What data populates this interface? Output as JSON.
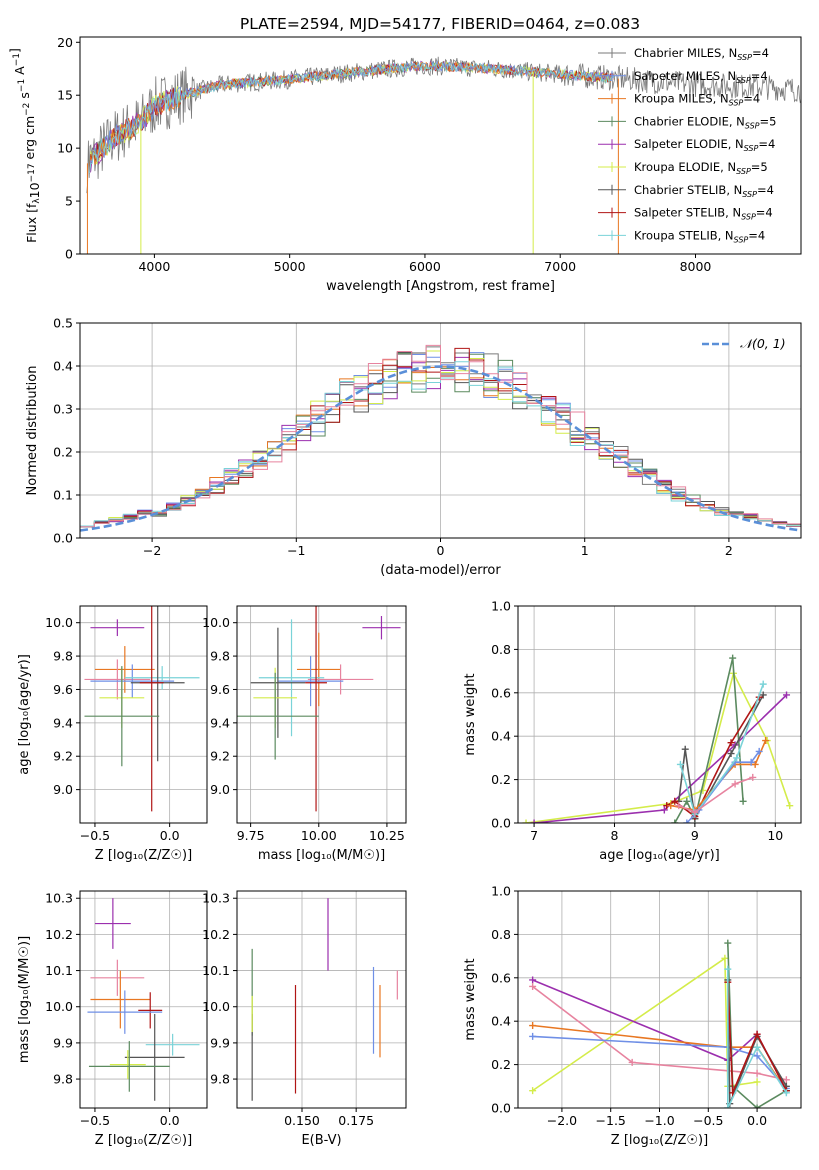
{
  "figure": {
    "title": "PLATE=2594, MJD=54177, FIBERID=0464, z=0.083"
  },
  "colors": {
    "series": [
      "#7a7a7a",
      "#6f8fe6",
      "#e87722",
      "#5b8a5f",
      "#9b2fae",
      "#d4ec4a",
      "#555555",
      "#b01515",
      "#7ad3d8",
      "#e7839f"
    ]
  },
  "chart_data": [
    {
      "id": "spectrum",
      "type": "line",
      "xlabel": "wavelength [Angstrom, rest frame]",
      "ylabel_parts": {
        "pre": "Flux [f",
        "sub1": "λ",
        "mid": "10",
        "sup1": "−17",
        "post": " erg cm",
        "sup2": "−2",
        "post2": " s",
        "sup3": "−1",
        "post3": " A",
        "sup4": "−1",
        "end": "]"
      },
      "xlim": [
        3450,
        8780
      ],
      "ylim": [
        0,
        20.5
      ],
      "xticks": [
        4000,
        5000,
        6000,
        7000,
        8000
      ],
      "yticks": [
        0,
        5,
        10,
        15,
        20
      ],
      "legend": [
        {
          "label": "Chabrier MILES, N",
          "sub": "SSP",
          "tail": "=4",
          "color": "#7a7a7a"
        },
        {
          "label": "Salpeter MILES, N",
          "sub": "SSP",
          "tail": "=4",
          "color": "#6f8fe6"
        },
        {
          "label": "Kroupa MILES, N",
          "sub": "SSP",
          "tail": "=4",
          "color": "#e87722"
        },
        {
          "label": "Chabrier ELODIE, N",
          "sub": "SSP",
          "tail": "=5",
          "color": "#5b8a5f"
        },
        {
          "label": "Salpeter ELODIE, N",
          "sub": "SSP",
          "tail": "=4",
          "color": "#9b2fae"
        },
        {
          "label": "Kroupa ELODIE, N",
          "sub": "SSP",
          "tail": "=5",
          "color": "#d4ec4a"
        },
        {
          "label": "Chabrier STELIB, N",
          "sub": "SSP",
          "tail": "=4",
          "color": "#555555"
        },
        {
          "label": "Salpeter STELIB, N",
          "sub": "SSP",
          "tail": "=4",
          "color": "#b01515"
        },
        {
          "label": "Kroupa STELIB, N",
          "sub": "SSP",
          "tail": "=4",
          "color": "#7ad3d8"
        }
      ],
      "continuum": [
        [
          3500,
          8.5
        ],
        [
          3700,
          11
        ],
        [
          3900,
          12.5
        ],
        [
          4000,
          14
        ],
        [
          4200,
          15
        ],
        [
          4500,
          16
        ],
        [
          5000,
          16.5
        ],
        [
          5500,
          17.2
        ],
        [
          6000,
          17.8
        ],
        [
          6500,
          17.5
        ],
        [
          7000,
          17
        ],
        [
          7500,
          16.5
        ],
        [
          8000,
          16
        ],
        [
          8500,
          15.8
        ],
        [
          8780,
          15.5
        ]
      ]
    },
    {
      "id": "residuals",
      "type": "histogram",
      "xlabel": "(data-model)/error",
      "ylabel": "Normed distribution",
      "xlim": [
        -2.5,
        2.5
      ],
      "ylim": [
        0,
        0.5
      ],
      "xticks": [
        -2,
        -1,
        0,
        1,
        2
      ],
      "yticks": [
        0.0,
        0.1,
        0.2,
        0.3,
        0.4,
        0.5
      ],
      "legend": "𝒩(0, 1)",
      "legend_color": "#5a8fd8"
    },
    {
      "id": "Z-age",
      "type": "errorbar",
      "xlabel": "Z [log₁₀(Z/Z☉)]",
      "ylabel": "age  [log₁₀(age/yr)]",
      "xlim": [
        -0.6,
        0.25
      ],
      "ylim": [
        8.8,
        10.1
      ],
      "xticks": [
        -0.5,
        0.0
      ],
      "yticks": [
        9.0,
        9.2,
        9.4,
        9.6,
        9.8,
        10.0
      ],
      "points": [
        {
          "x": -0.35,
          "y": 9.97,
          "xerr": 0.18,
          "yerr": 0.05,
          "color": "#9b2fae"
        },
        {
          "x": -0.3,
          "y": 9.72,
          "xerr": 0.2,
          "yerr": 0.14,
          "color": "#e87722"
        },
        {
          "x": -0.35,
          "y": 9.66,
          "xerr": 0.22,
          "yerr": 0.12,
          "color": "#e7839f"
        },
        {
          "x": -0.25,
          "y": 9.65,
          "xerr": 0.28,
          "yerr": 0.1,
          "color": "#6f8fe6"
        },
        {
          "x": -0.05,
          "y": 9.67,
          "xerr": 0.25,
          "yerr": 0.07,
          "color": "#7ad3d8"
        },
        {
          "x": -0.08,
          "y": 9.64,
          "xerr": 0.18,
          "yerr": 0.47,
          "color": "#555555"
        },
        {
          "x": -0.12,
          "y": 9.64,
          "xerr": 0.08,
          "yerr": 0.77,
          "color": "#b01515"
        },
        {
          "x": -0.32,
          "y": 9.55,
          "xerr": 0.15,
          "yerr": 0.18,
          "color": "#d4ec4a"
        },
        {
          "x": -0.32,
          "y": 9.44,
          "xerr": 0.25,
          "yerr": 0.3,
          "color": "#5b8a5f"
        }
      ]
    },
    {
      "id": "mass-age",
      "type": "errorbar",
      "xlabel": "mass [log₁₀(M/M☉)]",
      "ylabel": "",
      "xlim": [
        9.7,
        10.32
      ],
      "ylim": [
        8.8,
        10.1
      ],
      "xticks": [
        9.75,
        10.0,
        10.25
      ],
      "yticks": [
        9.0,
        9.2,
        9.4,
        9.6,
        9.8,
        10.0
      ],
      "points": [
        {
          "x": 10.23,
          "y": 9.97,
          "xerr": 0.07,
          "yerr": 0.07,
          "color": "#9b2fae"
        },
        {
          "x": 10.0,
          "y": 9.72,
          "xerr": 0.08,
          "yerr": 0.22,
          "color": "#e87722"
        },
        {
          "x": 10.08,
          "y": 9.66,
          "xerr": 0.12,
          "yerr": 0.09,
          "color": "#e7839f"
        },
        {
          "x": 9.97,
          "y": 9.65,
          "xerr": 0.12,
          "yerr": 0.15,
          "color": "#6f8fe6"
        },
        {
          "x": 9.9,
          "y": 9.67,
          "xerr": 0.12,
          "yerr": 0.35,
          "color": "#7ad3d8"
        },
        {
          "x": 9.85,
          "y": 9.64,
          "xerr": 0.1,
          "yerr": 0.33,
          "color": "#555555"
        },
        {
          "x": 9.99,
          "y": 9.64,
          "xerr": 0.04,
          "yerr": 0.77,
          "color": "#b01515"
        },
        {
          "x": 9.84,
          "y": 9.55,
          "xerr": 0.08,
          "yerr": 0.18,
          "color": "#d4ec4a"
        },
        {
          "x": 9.84,
          "y": 9.44,
          "xerr": 0.16,
          "yerr": 0.26,
          "color": "#5b8a5f"
        }
      ]
    },
    {
      "id": "age-weight",
      "type": "line",
      "xlabel": "age  [log₁₀(age/yr)]",
      "ylabel": "mass weight",
      "xlim": [
        6.8,
        10.32
      ],
      "ylim": [
        0,
        1.0
      ],
      "xticks": [
        7,
        8,
        9,
        10
      ],
      "yticks": [
        0.0,
        0.2,
        0.4,
        0.6,
        0.8,
        1.0
      ],
      "series": [
        {
          "color": "#d4ec4a",
          "points": [
            [
              6.9,
              0.0
            ],
            [
              8.7,
              0.09
            ],
            [
              9.1,
              0.15
            ],
            [
              9.48,
              0.69
            ],
            [
              9.9,
              0.38
            ],
            [
              10.18,
              0.08
            ]
          ]
        },
        {
          "color": "#9b2fae",
          "points": [
            [
              7.0,
              0.0
            ],
            [
              8.62,
              0.06
            ],
            [
              9.5,
              0.36
            ],
            [
              10.14,
              0.59
            ]
          ]
        },
        {
          "color": "#5b8a5f",
          "points": [
            [
              8.75,
              0.0
            ],
            [
              8.9,
              0.1
            ],
            [
              9.0,
              0.02
            ],
            [
              9.47,
              0.76
            ],
            [
              9.6,
              0.1
            ]
          ]
        },
        {
          "color": "#555555",
          "points": [
            [
              8.8,
              0.1
            ],
            [
              8.88,
              0.34
            ],
            [
              9.0,
              0.02
            ],
            [
              9.45,
              0.32
            ],
            [
              9.85,
              0.59
            ]
          ]
        },
        {
          "color": "#b01515",
          "points": [
            [
              8.65,
              0.08
            ],
            [
              8.75,
              0.1
            ],
            [
              9.0,
              0.03
            ],
            [
              9.45,
              0.37
            ],
            [
              9.8,
              0.58
            ]
          ]
        },
        {
          "color": "#e87722",
          "points": [
            [
              8.7,
              0.08
            ],
            [
              9.0,
              0.06
            ],
            [
              9.5,
              0.27
            ],
            [
              9.75,
              0.27
            ],
            [
              9.88,
              0.38
            ]
          ]
        },
        {
          "color": "#6f8fe6",
          "points": [
            [
              8.9,
              0.0
            ],
            [
              9.05,
              0.06
            ],
            [
              9.5,
              0.28
            ],
            [
              9.7,
              0.28
            ],
            [
              9.8,
              0.33
            ]
          ]
        },
        {
          "color": "#7ad3d8",
          "points": [
            [
              8.82,
              0.27
            ],
            [
              9.0,
              0.04
            ],
            [
              9.52,
              0.3
            ],
            [
              9.85,
              0.64
            ]
          ]
        },
        {
          "color": "#e7839f",
          "points": [
            [
              8.8,
              0.08
            ],
            [
              9.0,
              0.05
            ],
            [
              9.5,
              0.18
            ],
            [
              9.72,
              0.21
            ]
          ]
        }
      ]
    },
    {
      "id": "Z-mass",
      "type": "errorbar",
      "xlabel": "Z [log₁₀(Z/Z☉)]",
      "ylabel": "mass [log₁₀(M/M☉)]",
      "xlim": [
        -0.6,
        0.25
      ],
      "ylim": [
        9.72,
        10.32
      ],
      "xticks": [
        -0.5,
        0.0
      ],
      "yticks": [
        9.8,
        9.9,
        10.0,
        10.1,
        10.2,
        10.3
      ],
      "points": [
        {
          "x": -0.38,
          "y": 10.23,
          "xerr": 0.12,
          "yerr": 0.07,
          "color": "#9b2fae"
        },
        {
          "x": -0.35,
          "y": 10.08,
          "xerr": 0.18,
          "yerr": 0.05,
          "color": "#e7839f"
        },
        {
          "x": -0.33,
          "y": 10.02,
          "xerr": 0.2,
          "yerr": 0.08,
          "color": "#e87722"
        },
        {
          "x": -0.13,
          "y": 9.99,
          "xerr": 0.08,
          "yerr": 0.05,
          "color": "#b01515"
        },
        {
          "x": -0.3,
          "y": 9.985,
          "xerr": 0.25,
          "yerr": 0.06,
          "color": "#6f8fe6"
        },
        {
          "x": 0.02,
          "y": 9.895,
          "xerr": 0.18,
          "yerr": 0.03,
          "color": "#7ad3d8"
        },
        {
          "x": -0.1,
          "y": 9.86,
          "xerr": 0.2,
          "yerr": 0.12,
          "color": "#555555"
        },
        {
          "x": -0.28,
          "y": 9.84,
          "xerr": 0.12,
          "yerr": 0.04,
          "color": "#d4ec4a"
        },
        {
          "x": -0.27,
          "y": 9.835,
          "xerr": 0.27,
          "yerr": 0.07,
          "color": "#5b8a5f"
        }
      ]
    },
    {
      "id": "EBV-mass",
      "type": "errorbar",
      "xlabel": "E(B-V)",
      "ylabel": "",
      "xlim": [
        0.12,
        0.198
      ],
      "ylim": [
        9.72,
        10.32
      ],
      "xticks": [
        0.15,
        0.175
      ],
      "yticks": [
        9.8,
        9.9,
        10.0,
        10.1,
        10.2,
        10.3
      ],
      "points": [
        {
          "x": 0.162,
          "y": 10.2,
          "xerr": 0,
          "yerr": 0.1,
          "color": "#9b2fae"
        },
        {
          "x": 0.194,
          "y": 10.06,
          "xerr": 0,
          "yerr": 0.04,
          "color": "#e7839f"
        },
        {
          "x": 0.127,
          "y": 10.04,
          "xerr": 0,
          "yerr": 0.12,
          "color": "#5b8a5f"
        },
        {
          "x": 0.183,
          "y": 9.99,
          "xerr": 0,
          "yerr": 0.12,
          "color": "#6f8fe6"
        },
        {
          "x": 0.147,
          "y": 9.91,
          "xerr": 0,
          "yerr": 0.15,
          "color": "#b01515"
        },
        {
          "x": 0.186,
          "y": 9.96,
          "xerr": 0,
          "yerr": 0.1,
          "color": "#e87722"
        },
        {
          "x": 0.127,
          "y": 9.86,
          "xerr": 0,
          "yerr": 0.12,
          "color": "#555555"
        },
        {
          "x": 0.127,
          "y": 9.98,
          "xerr": 0,
          "yerr": 0.05,
          "color": "#d4ec4a"
        }
      ]
    },
    {
      "id": "Z-weight",
      "type": "line",
      "xlabel": "Z [log₁₀(Z/Z☉)]",
      "ylabel": "mass weight",
      "xlim": [
        -2.45,
        0.45
      ],
      "ylim": [
        0,
        1.0
      ],
      "xticks": [
        -2.0,
        -1.5,
        -1.0,
        -0.5,
        0.0
      ],
      "yticks": [
        0.0,
        0.2,
        0.4,
        0.6,
        0.8,
        1.0
      ],
      "series": [
        {
          "color": "#d4ec4a",
          "points": [
            [
              -2.3,
              0.08
            ],
            [
              -0.33,
              0.69
            ],
            [
              -0.3,
              0.1
            ],
            [
              0.0,
              0.12
            ]
          ]
        },
        {
          "color": "#9b2fae",
          "points": [
            [
              -2.3,
              0.59
            ],
            [
              -0.3,
              0.22
            ],
            [
              0.0,
              0.34
            ],
            [
              0.3,
              0.08
            ]
          ]
        },
        {
          "color": "#e7839f",
          "points": [
            [
              -2.3,
              0.56
            ],
            [
              -1.28,
              0.21
            ],
            [
              0.0,
              0.16
            ],
            [
              0.3,
              0.13
            ]
          ]
        },
        {
          "color": "#e87722",
          "points": [
            [
              -2.3,
              0.38
            ],
            [
              -0.3,
              0.28
            ],
            [
              0.0,
              0.28
            ],
            [
              0.3,
              0.08
            ]
          ]
        },
        {
          "color": "#6f8fe6",
          "points": [
            [
              -2.3,
              0.33
            ],
            [
              -0.3,
              0.28
            ],
            [
              0.0,
              0.24
            ],
            [
              0.3,
              0.09
            ]
          ]
        },
        {
          "color": "#5b8a5f",
          "points": [
            [
              -0.3,
              0.76
            ],
            [
              -0.25,
              0.1
            ],
            [
              0.0,
              0.0
            ],
            [
              0.3,
              0.08
            ]
          ]
        },
        {
          "color": "#555555",
          "points": [
            [
              -0.3,
              0.59
            ],
            [
              -0.28,
              0.02
            ],
            [
              0.0,
              0.33
            ],
            [
              0.3,
              0.1
            ]
          ]
        },
        {
          "color": "#b01515",
          "points": [
            [
              -0.3,
              0.58
            ],
            [
              -0.25,
              0.07
            ],
            [
              0.0,
              0.34
            ],
            [
              0.3,
              0.08
            ]
          ]
        },
        {
          "color": "#7ad3d8",
          "points": [
            [
              -0.3,
              0.64
            ],
            [
              -0.3,
              0.0
            ],
            [
              0.0,
              0.28
            ],
            [
              0.3,
              0.07
            ]
          ]
        }
      ]
    }
  ]
}
